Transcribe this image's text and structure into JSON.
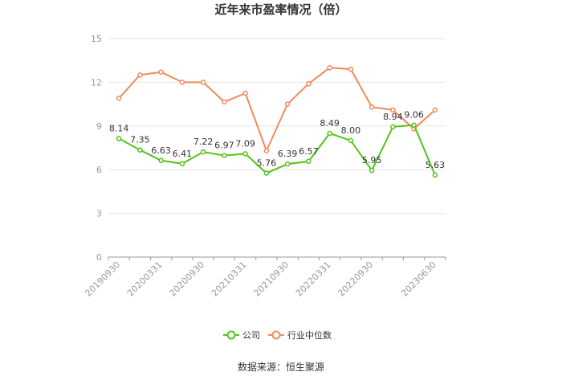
{
  "chart_data": {
    "type": "line",
    "title": "近年来市盈率情况（倍）",
    "source": "数据来源：恒生聚源",
    "ylim": [
      0,
      15
    ],
    "yticks": [
      0,
      3,
      6,
      9,
      12,
      15
    ],
    "grid": true,
    "legend_position": "bottom",
    "x_tick_labels": [
      "20190930",
      "20200331",
      "20200930",
      "20210331",
      "20210930",
      "20220331",
      "20220930",
      "20230630"
    ],
    "x": [
      "20190930",
      "20191231",
      "20200331",
      "20200630",
      "20200930",
      "20201231",
      "20210331",
      "20210630",
      "20210930",
      "20211231",
      "20220331",
      "20220630",
      "20220930",
      "20221231",
      "20230331",
      "20230630"
    ],
    "series": [
      {
        "name": "公司",
        "color": "#52c41a",
        "values": [
          8.14,
          7.35,
          6.63,
          6.41,
          7.22,
          6.97,
          7.09,
          5.76,
          6.39,
          6.57,
          8.49,
          8.0,
          5.95,
          8.94,
          9.06,
          5.63
        ],
        "labels": [
          "8.14",
          "7.35",
          "6.63",
          "6.41",
          "7.22",
          "6.97",
          "7.09",
          "5.76",
          "6.39",
          "6.57",
          "8.49",
          "8.00",
          "5.95",
          "8.94",
          "9.06",
          "5.63"
        ]
      },
      {
        "name": "行业中位数",
        "color": "#f08a5d",
        "values": [
          10.9,
          12.5,
          12.7,
          12.0,
          12.0,
          10.65,
          11.25,
          7.3,
          10.5,
          11.9,
          13.0,
          12.9,
          10.3,
          10.1,
          8.8,
          10.1
        ]
      }
    ]
  }
}
